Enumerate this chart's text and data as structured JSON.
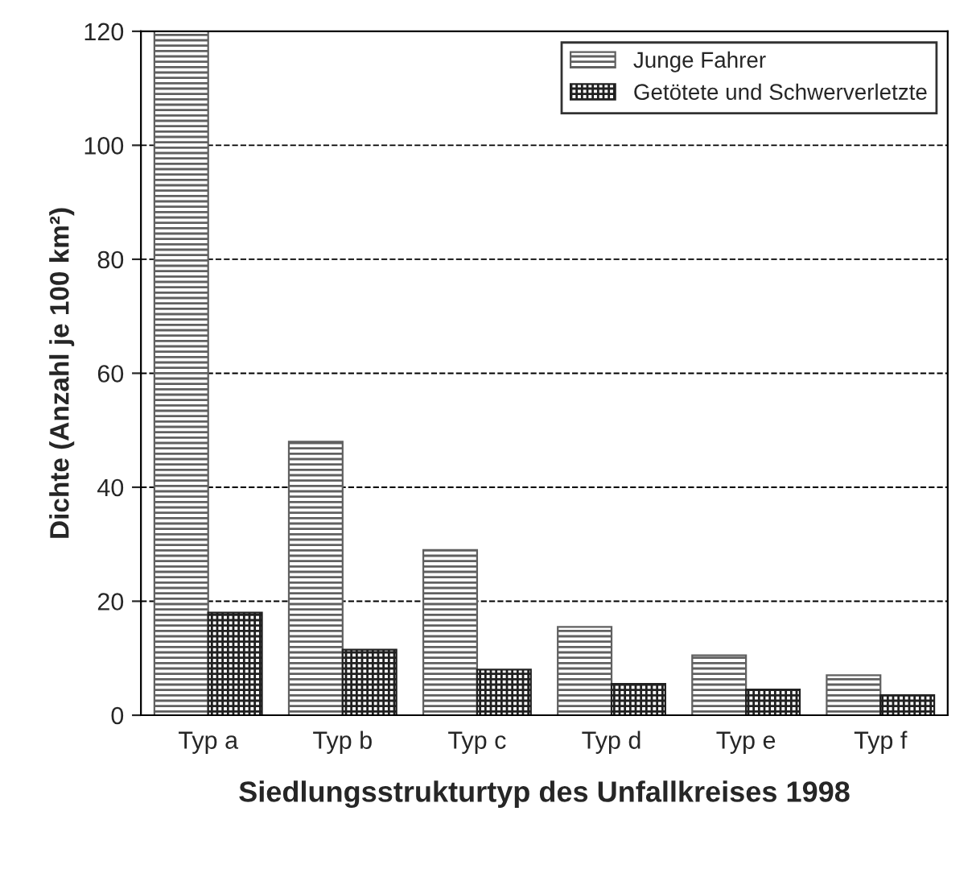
{
  "chart_data": {
    "type": "bar",
    "xlabel": "Siedlungsstrukturtyp des Unfallkreises 1998",
    "ylabel": "Dichte (Anzahl je 100 km²)",
    "categories": [
      "Typ a",
      "Typ b",
      "Typ c",
      "Typ d",
      "Typ e",
      "Typ f"
    ],
    "series": [
      {
        "name": "Junge Fahrer",
        "color": "#606060",
        "values": [
          120,
          48,
          29,
          15.5,
          10.5,
          7
        ]
      },
      {
        "name": "Getötete und Schwerverletzte",
        "color": "#202020",
        "values": [
          18,
          11.5,
          8,
          5.5,
          4.5,
          3.5
        ]
      }
    ],
    "ylim": [
      0,
      120
    ],
    "yticks": [
      0,
      20,
      40,
      60,
      80,
      100,
      120
    ],
    "grid": "y",
    "legend": "top right"
  }
}
